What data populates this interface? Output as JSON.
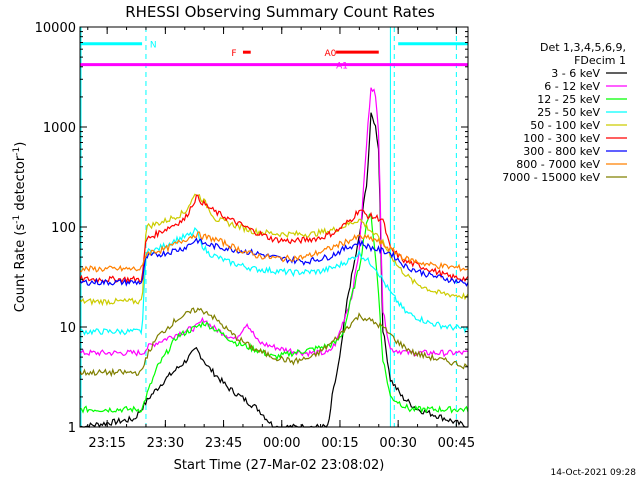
{
  "chart_data": {
    "type": "line",
    "title": "RHESSI Observing Summary Count Rates",
    "xlabel": "Start Time (27-Mar-02 23:08:02)",
    "ylabel_main": "Count Rate (s",
    "ylabel_sup1": "-1",
    "ylabel_mid": " detector",
    "ylabel_sup2": "-1",
    "ylabel_end": ")",
    "yscale": "log",
    "ylim": [
      1,
      10000
    ],
    "xlim_min": [
      0,
      100
    ],
    "y_ticks": [
      {
        "v": 1,
        "label": "1"
      },
      {
        "v": 10,
        "label": "10"
      },
      {
        "v": 100,
        "label": "100"
      },
      {
        "v": 1000,
        "label": "1000"
      },
      {
        "v": 10000,
        "label": "10000"
      }
    ],
    "x_ticks": [
      {
        "t": 7,
        "label": "23:15"
      },
      {
        "t": 22,
        "label": "23:30"
      },
      {
        "t": 37,
        "label": "23:45"
      },
      {
        "t": 52,
        "label": "00:00"
      },
      {
        "t": 67,
        "label": "00:15"
      },
      {
        "t": 82,
        "label": "00:30"
      },
      {
        "t": 97,
        "label": "00:45"
      }
    ],
    "legend_title": [
      "Det 1,3,4,5,6,9,",
      "FDecim 1"
    ],
    "legend_placement": "right",
    "dashed_vlines": [
      17,
      81,
      97
    ],
    "solid_vlines": [
      0,
      80
    ],
    "flags": [
      {
        "label": "N",
        "color": "#00ffff",
        "segments": [
          [
            0,
            16
          ],
          [
            82,
            100
          ]
        ],
        "y": 6800,
        "label_t": 18
      },
      {
        "label": "F",
        "color": "#ff0000",
        "segments": [
          [
            42,
            44
          ]
        ],
        "y": 5600,
        "label_t": 39
      },
      {
        "label": "A0",
        "color": "#ff0000",
        "segments": [
          [
            66,
            77
          ]
        ],
        "y": 5600,
        "label_t": 63
      },
      {
        "label": "A1",
        "color": "#ff00ff",
        "segments": [
          [
            0,
            100
          ]
        ],
        "y": 4200,
        "label_t": 66
      }
    ],
    "series": [
      {
        "name": "3 - 6 keV",
        "color": "#000000",
        "points": [
          [
            0,
            1
          ],
          [
            14,
            1.2
          ],
          [
            18,
            2
          ],
          [
            22,
            3
          ],
          [
            27,
            4.5
          ],
          [
            30,
            6
          ],
          [
            33,
            4
          ],
          [
            38,
            2.5
          ],
          [
            46,
            1.5
          ],
          [
            50,
            1
          ],
          [
            64,
            1
          ],
          [
            65,
            2
          ],
          [
            67,
            5
          ],
          [
            69,
            20
          ],
          [
            72,
            80
          ],
          [
            74,
            300
          ],
          [
            75,
            1300
          ],
          [
            76,
            1100
          ],
          [
            77,
            600
          ],
          [
            78,
            10
          ],
          [
            80,
            3
          ],
          [
            83,
            2
          ],
          [
            87,
            1.5
          ],
          [
            92,
            1.3
          ],
          [
            100,
            1
          ]
        ]
      },
      {
        "name": "6 - 12 keV",
        "color": "#ff00ff",
        "points": [
          [
            0,
            5.5
          ],
          [
            16,
            5.5
          ],
          [
            18,
            6.5
          ],
          [
            25,
            8.5
          ],
          [
            30,
            10
          ],
          [
            32,
            12
          ],
          [
            34,
            10
          ],
          [
            40,
            7.5
          ],
          [
            43,
            11
          ],
          [
            46,
            7
          ],
          [
            52,
            6
          ],
          [
            58,
            5.5
          ],
          [
            64,
            5.5
          ],
          [
            66,
            7
          ],
          [
            70,
            20
          ],
          [
            72,
            60
          ],
          [
            74,
            800
          ],
          [
            75,
            2600
          ],
          [
            76,
            2200
          ],
          [
            77,
            900
          ],
          [
            78,
            15
          ],
          [
            80,
            6
          ],
          [
            85,
            5.5
          ],
          [
            100,
            5.5
          ]
        ]
      },
      {
        "name": "12 - 25 keV",
        "color": "#00ff00",
        "points": [
          [
            0,
            1.5
          ],
          [
            16,
            1.5
          ],
          [
            17,
            2
          ],
          [
            20,
            4
          ],
          [
            25,
            8
          ],
          [
            30,
            10
          ],
          [
            32,
            11
          ],
          [
            34,
            10
          ],
          [
            40,
            7
          ],
          [
            45,
            6
          ],
          [
            50,
            5
          ],
          [
            55,
            5.5
          ],
          [
            60,
            6
          ],
          [
            64,
            6.5
          ],
          [
            66,
            7
          ],
          [
            68,
            9
          ],
          [
            70,
            20
          ],
          [
            72,
            40
          ],
          [
            74,
            120
          ],
          [
            75,
            130
          ],
          [
            76,
            60
          ],
          [
            77,
            20
          ],
          [
            78,
            5
          ],
          [
            80,
            2
          ],
          [
            85,
            1.5
          ],
          [
            100,
            1.5
          ]
        ]
      },
      {
        "name": "25 - 50 keV",
        "color": "#00ffff",
        "points": [
          [
            0,
            9
          ],
          [
            16,
            9
          ],
          [
            17,
            56
          ],
          [
            20,
            60
          ],
          [
            25,
            75
          ],
          [
            29,
            85
          ],
          [
            30,
            95
          ],
          [
            31,
            70
          ],
          [
            33,
            55
          ],
          [
            38,
            45
          ],
          [
            45,
            38
          ],
          [
            55,
            35
          ],
          [
            62,
            36
          ],
          [
            66,
            40
          ],
          [
            70,
            48
          ],
          [
            72,
            55
          ],
          [
            73,
            50
          ],
          [
            76,
            40
          ],
          [
            80,
            22
          ],
          [
            84,
            14
          ],
          [
            90,
            11
          ],
          [
            95,
            10
          ],
          [
            100,
            9.5
          ]
        ]
      },
      {
        "name": "50 - 100 keV",
        "color": "#cccc00",
        "points": [
          [
            0,
            18
          ],
          [
            16,
            18
          ],
          [
            17,
            100
          ],
          [
            22,
            115
          ],
          [
            27,
            140
          ],
          [
            30,
            220
          ],
          [
            32,
            180
          ],
          [
            35,
            120
          ],
          [
            45,
            90
          ],
          [
            52,
            85
          ],
          [
            60,
            85
          ],
          [
            66,
            95
          ],
          [
            70,
            110
          ],
          [
            72,
            120
          ],
          [
            74,
            100
          ],
          [
            78,
            70
          ],
          [
            82,
            40
          ],
          [
            86,
            28
          ],
          [
            92,
            22
          ],
          [
            100,
            20
          ]
        ]
      },
      {
        "name": "100 - 300 keV",
        "color": "#ff0000",
        "points": [
          [
            0,
            30
          ],
          [
            16,
            30
          ],
          [
            17,
            75
          ],
          [
            22,
            95
          ],
          [
            27,
            120
          ],
          [
            30,
            200
          ],
          [
            32,
            170
          ],
          [
            35,
            140
          ],
          [
            45,
            90
          ],
          [
            50,
            75
          ],
          [
            55,
            72
          ],
          [
            62,
            78
          ],
          [
            66,
            90
          ],
          [
            70,
            120
          ],
          [
            72,
            150
          ],
          [
            74,
            130
          ],
          [
            78,
            120
          ],
          [
            80,
            60
          ],
          [
            84,
            45
          ],
          [
            90,
            38
          ],
          [
            95,
            32
          ],
          [
            100,
            30
          ]
        ]
      },
      {
        "name": "300 - 800 keV",
        "color": "#0000ff",
        "points": [
          [
            0,
            28
          ],
          [
            16,
            28
          ],
          [
            17,
            50
          ],
          [
            22,
            55
          ],
          [
            27,
            62
          ],
          [
            30,
            75
          ],
          [
            32,
            68
          ],
          [
            35,
            64
          ],
          [
            45,
            55
          ],
          [
            52,
            48
          ],
          [
            58,
            45
          ],
          [
            64,
            50
          ],
          [
            68,
            60
          ],
          [
            72,
            70
          ],
          [
            75,
            62
          ],
          [
            80,
            55
          ],
          [
            84,
            40
          ],
          [
            90,
            33
          ],
          [
            95,
            30
          ],
          [
            100,
            27
          ]
        ]
      },
      {
        "name": "800 - 7000 keV",
        "color": "#ff8000",
        "points": [
          [
            0,
            38
          ],
          [
            16,
            38
          ],
          [
            17,
            55
          ],
          [
            22,
            60
          ],
          [
            27,
            75
          ],
          [
            30,
            85
          ],
          [
            32,
            80
          ],
          [
            35,
            75
          ],
          [
            40,
            62
          ],
          [
            45,
            52
          ],
          [
            52,
            48
          ],
          [
            58,
            50
          ],
          [
            64,
            60
          ],
          [
            68,
            70
          ],
          [
            72,
            80
          ],
          [
            76,
            75
          ],
          [
            80,
            60
          ],
          [
            84,
            48
          ],
          [
            90,
            42
          ],
          [
            95,
            40
          ],
          [
            100,
            38
          ]
        ]
      },
      {
        "name": "7000 - 15000 keV",
        "color": "#808000",
        "points": [
          [
            0,
            3.5
          ],
          [
            16,
            3.5
          ],
          [
            17,
            5
          ],
          [
            20,
            8
          ],
          [
            25,
            12
          ],
          [
            30,
            15
          ],
          [
            33,
            14
          ],
          [
            36,
            11
          ],
          [
            40,
            8
          ],
          [
            45,
            6
          ],
          [
            50,
            5
          ],
          [
            55,
            4.5
          ],
          [
            60,
            5
          ],
          [
            65,
            7
          ],
          [
            70,
            11
          ],
          [
            72,
            13
          ],
          [
            74,
            12
          ],
          [
            78,
            10
          ],
          [
            82,
            7
          ],
          [
            86,
            5.5
          ],
          [
            90,
            5
          ],
          [
            95,
            4.5
          ],
          [
            100,
            4
          ]
        ]
      }
    ],
    "footer": "14-Oct-2021 09:28"
  }
}
